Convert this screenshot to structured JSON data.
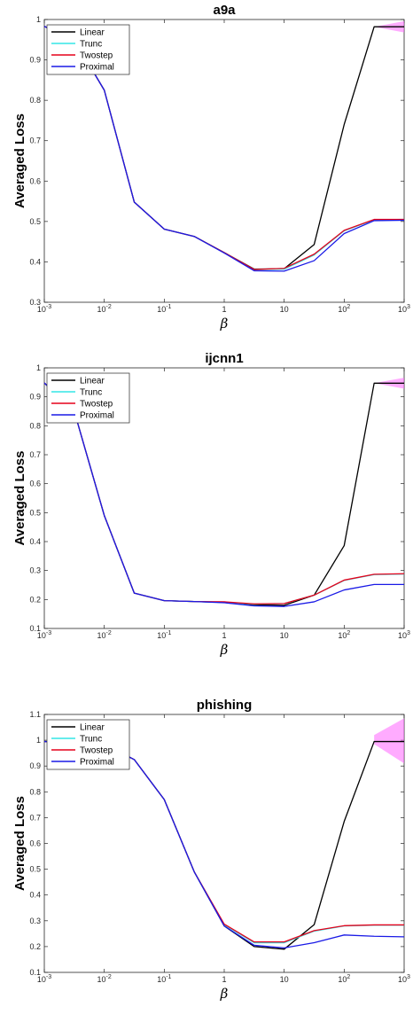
{
  "chart_data": [
    {
      "type": "line",
      "title": "a9a",
      "xlabel": "β",
      "ylabel": "Averaged Loss",
      "x_scale": "log",
      "xlim": [
        0.001,
        1000
      ],
      "ylim": [
        0.3,
        1
      ],
      "yticks": [
        "0.3",
        "0.4",
        "0.5",
        "0.6",
        "0.7",
        "0.8",
        "0.9",
        "1"
      ],
      "grid": false,
      "legend_position": "top-left",
      "x": [
        0.001,
        0.00316,
        0.01,
        0.0316,
        0.1,
        0.316,
        1,
        3.16,
        10,
        31.6,
        100,
        316,
        1000
      ],
      "series": [
        {
          "name": "Linear",
          "color": "#000000",
          "values": [
            0.983,
            0.95,
            0.825,
            0.548,
            0.481,
            0.463,
            0.423,
            0.382,
            0.383,
            0.443,
            0.74,
            0.982,
            0.982
          ]
        },
        {
          "name": "Trunc",
          "color": "#33e6e6",
          "values": [
            0.983,
            0.95,
            0.825,
            0.548,
            0.481,
            0.463,
            0.423,
            0.381,
            0.382,
            0.417,
            0.477,
            0.504,
            0.505
          ]
        },
        {
          "name": "Twostep",
          "color": "#e6001a",
          "values": [
            0.983,
            0.95,
            0.825,
            0.548,
            0.481,
            0.463,
            0.423,
            0.381,
            0.384,
            0.419,
            0.478,
            0.505,
            0.505
          ]
        },
        {
          "name": "Proximal",
          "color": "#1a1ae6",
          "values": [
            0.983,
            0.95,
            0.825,
            0.548,
            0.481,
            0.463,
            0.422,
            0.378,
            0.377,
            0.403,
            0.47,
            0.502,
            0.503
          ]
        }
      ],
      "band": {
        "color": "#ff66ff",
        "x": [
          316,
          1000
        ],
        "lower": [
          0.982,
          0.968
        ],
        "upper": [
          0.982,
          0.996
        ]
      }
    },
    {
      "type": "line",
      "title": "ijcnn1",
      "xlabel": "β",
      "ylabel": "Averaged Loss",
      "x_scale": "log",
      "xlim": [
        0.001,
        1000
      ],
      "ylim": [
        0.1,
        1
      ],
      "yticks": [
        "0.1",
        "0.2",
        "0.3",
        "0.4",
        "0.5",
        "0.6",
        "0.7",
        "0.8",
        "0.9",
        "1"
      ],
      "grid": false,
      "legend_position": "top-left",
      "x": [
        0.001,
        0.00316,
        0.01,
        0.0316,
        0.1,
        0.316,
        1,
        3.16,
        10,
        31.6,
        100,
        316,
        1000
      ],
      "series": [
        {
          "name": "Linear",
          "color": "#000000",
          "values": [
            0.948,
            0.85,
            0.49,
            0.222,
            0.196,
            0.193,
            0.19,
            0.182,
            0.18,
            0.215,
            0.386,
            0.947,
            0.947
          ]
        },
        {
          "name": "Trunc",
          "color": "#33e6e6",
          "values": [
            0.948,
            0.85,
            0.49,
            0.222,
            0.196,
            0.193,
            0.19,
            0.184,
            0.186,
            0.215,
            0.266,
            0.286,
            0.288
          ]
        },
        {
          "name": "Twostep",
          "color": "#e6001a",
          "values": [
            0.948,
            0.85,
            0.49,
            0.222,
            0.196,
            0.193,
            0.192,
            0.185,
            0.186,
            0.215,
            0.267,
            0.287,
            0.289
          ]
        },
        {
          "name": "Proximal",
          "color": "#1a1ae6",
          "values": [
            0.948,
            0.85,
            0.49,
            0.222,
            0.196,
            0.193,
            0.189,
            0.178,
            0.176,
            0.192,
            0.233,
            0.252,
            0.252
          ]
        }
      ],
      "band": {
        "color": "#ff66ff",
        "x": [
          316,
          1000
        ],
        "lower": [
          0.947,
          0.928
        ],
        "upper": [
          0.947,
          0.966
        ]
      }
    },
    {
      "type": "line",
      "title": "phishing",
      "xlabel": "β",
      "ylabel": "Averaged Loss",
      "x_scale": "log",
      "xlim": [
        0.001,
        1000
      ],
      "ylim": [
        0.1,
        1.1
      ],
      "yticks": [
        "0.1",
        "0.2",
        "0.3",
        "0.4",
        "0.5",
        "0.6",
        "0.7",
        "0.8",
        "0.9",
        "1",
        "1.1"
      ],
      "grid": false,
      "legend_position": "top-left",
      "x": [
        0.001,
        0.00316,
        0.01,
        0.0316,
        0.1,
        0.316,
        1,
        3.16,
        10,
        31.6,
        100,
        316,
        1000
      ],
      "series": [
        {
          "name": "Linear",
          "color": "#000000",
          "values": [
            0.995,
            0.99,
            0.985,
            0.925,
            0.77,
            0.49,
            0.28,
            0.2,
            0.19,
            0.285,
            0.685,
            0.995,
            0.995
          ]
        },
        {
          "name": "Trunc",
          "color": "#33e6e6",
          "values": [
            0.995,
            0.99,
            0.985,
            0.925,
            0.77,
            0.49,
            0.285,
            0.215,
            0.215,
            0.26,
            0.28,
            0.283,
            0.283
          ]
        },
        {
          "name": "Twostep",
          "color": "#e6001a",
          "values": [
            0.995,
            0.99,
            0.985,
            0.925,
            0.77,
            0.49,
            0.287,
            0.218,
            0.218,
            0.262,
            0.281,
            0.284,
            0.284
          ]
        },
        {
          "name": "Proximal",
          "color": "#1a1ae6",
          "values": [
            0.995,
            0.99,
            0.985,
            0.925,
            0.77,
            0.49,
            0.28,
            0.205,
            0.195,
            0.215,
            0.245,
            0.24,
            0.238
          ]
        }
      ],
      "band": {
        "color": "#ff66ff",
        "x": [
          316,
          1000
        ],
        "lower": [
          0.985,
          0.91
        ],
        "upper": [
          1.02,
          1.085
        ]
      }
    }
  ]
}
